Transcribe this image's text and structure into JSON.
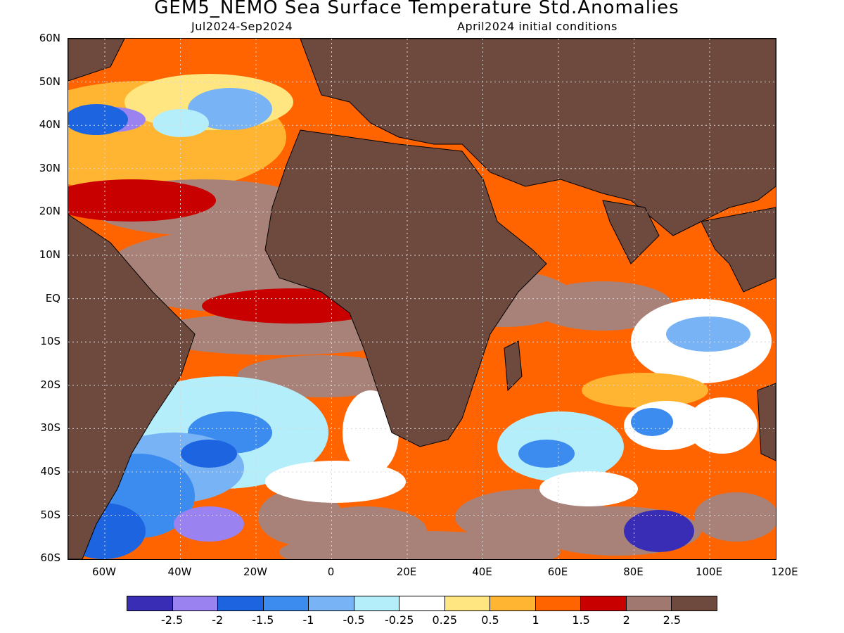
{
  "title": "GEM5_NEMO Sea Surface Temperature Std.Anomalies",
  "subtitle_left": "Jul2024-Sep2024",
  "subtitle_right": "April2024 initial conditions",
  "lat_labels": [
    "60N",
    "50N",
    "40N",
    "30N",
    "20N",
    "10N",
    "EQ",
    "10S",
    "20S",
    "30S",
    "40S",
    "50S",
    "60S"
  ],
  "lon_labels": [
    "60W",
    "40W",
    "20W",
    "0",
    "20E",
    "40E",
    "60E",
    "80E",
    "100E",
    "120E"
  ],
  "colorbar": {
    "colors": [
      "#3a2db5",
      "#9a82f0",
      "#1c64e0",
      "#3c8cf0",
      "#78b4f5",
      "#b4eefa",
      "#ffffff",
      "#ffe680",
      "#ffb432",
      "#ff6400",
      "#c80000",
      "#a07870",
      "#6e4a3e"
    ],
    "labels": [
      "-2.5",
      "-2",
      "-1.5",
      "-1",
      "-0.5",
      "-0.25",
      "0.25",
      "0.5",
      "1",
      "1.5",
      "2",
      "2.5"
    ]
  },
  "map_colors": {
    "land": "#6e4a3e",
    "neutral": "#a88278",
    "gridline": "#d8d8d8"
  }
}
